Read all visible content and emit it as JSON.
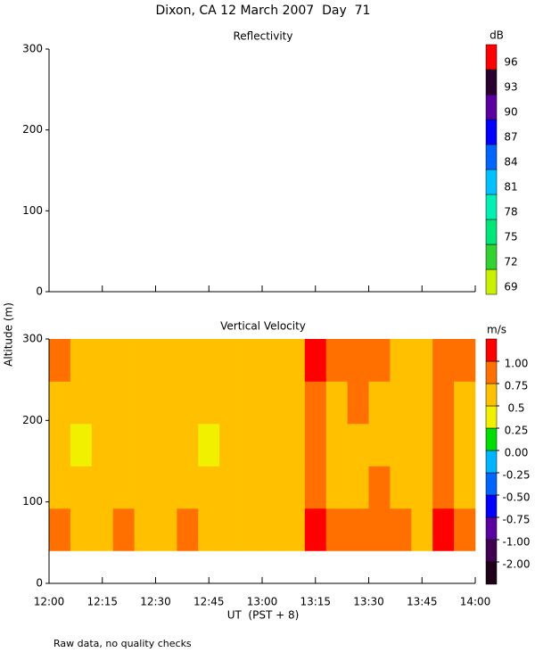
{
  "figure": {
    "title": "Dixon, CA 12 March 2007  Day  71",
    "ylabel": "Altitude (m)",
    "xlabel": "UT  (PST + 8)",
    "footnote": "Raw data, no quality checks"
  },
  "chart_data": [
    {
      "type": "heatmap",
      "title": "Reflectivity",
      "xlim": [
        12,
        14
      ],
      "xticks": [
        12,
        12.25,
        12.5,
        12.75,
        13,
        13.25,
        13.5,
        13.75,
        14
      ],
      "ylim": [
        0,
        300
      ],
      "yticks": [
        0,
        100,
        200,
        300
      ],
      "colorbar": {
        "label": "dB",
        "ticks": [
          69,
          72,
          75,
          78,
          81,
          84,
          87,
          90,
          93,
          96
        ],
        "colors": [
          "#c8f000",
          "#32d232",
          "#00e678",
          "#00f0b4",
          "#00c0ff",
          "#0064ff",
          "#0000ff",
          "#5a00a0",
          "#2a0030",
          "#ff0000",
          "#ff8c00",
          "#ffc000"
        ]
      }
    },
    {
      "type": "heatmap",
      "title": "Vertical Velocity",
      "xlim": [
        12,
        14
      ],
      "xticks": [
        {
          "value": 12,
          "label": "12:00"
        },
        {
          "value": 12.25,
          "label": "12:15"
        },
        {
          "value": 12.5,
          "label": "12:30"
        },
        {
          "value": 12.75,
          "label": "12:45"
        },
        {
          "value": 13,
          "label": "13:00"
        },
        {
          "value": 13.25,
          "label": "13:15"
        },
        {
          "value": 13.5,
          "label": "13:30"
        },
        {
          "value": 13.75,
          "label": "13:45"
        },
        {
          "value": 14,
          "label": "14:00"
        }
      ],
      "ylim": [
        0,
        300
      ],
      "yticks": [
        0,
        100,
        200,
        300
      ],
      "x": [
        12,
        12.1,
        12.2,
        12.3,
        12.4,
        12.5,
        12.6,
        12.7,
        12.8,
        12.9,
        13,
        13.1,
        13.2,
        13.3,
        13.4,
        13.5,
        13.6,
        13.7,
        13.8,
        13.9,
        14
      ],
      "y": [
        40,
        92,
        144,
        196,
        248,
        300
      ],
      "values": [
        [
          0.8,
          0.7,
          0.65,
          0.8,
          0.7,
          0.65,
          0.8,
          0.7,
          0.6,
          0.65,
          0.6,
          0.7,
          1.05,
          0.8,
          0.75,
          0.8,
          0.8,
          0.7,
          1.05,
          0.8
        ],
        [
          0.7,
          0.6,
          0.55,
          0.65,
          0.7,
          0.6,
          0.65,
          0.55,
          0.6,
          0.5,
          0.55,
          0.6,
          0.9,
          0.7,
          0.65,
          0.8,
          0.7,
          0.6,
          0.95,
          0.7
        ],
        [
          0.6,
          0.45,
          0.55,
          0.6,
          0.5,
          0.55,
          0.6,
          0.45,
          0.55,
          0.5,
          0.55,
          0.6,
          0.9,
          0.55,
          0.6,
          0.65,
          0.6,
          0.55,
          0.9,
          0.6
        ],
        [
          0.7,
          0.6,
          0.55,
          0.65,
          0.6,
          0.55,
          0.7,
          0.6,
          0.65,
          0.6,
          0.55,
          0.65,
          0.95,
          0.7,
          0.8,
          0.7,
          0.7,
          0.6,
          0.9,
          0.7
        ],
        [
          0.8,
          0.7,
          0.6,
          0.7,
          0.6,
          0.7,
          0.65,
          0.7,
          0.55,
          0.6,
          0.55,
          0.7,
          1.1,
          0.8,
          0.8,
          0.75,
          0.7,
          0.65,
          0.95,
          0.8
        ]
      ],
      "colorbar": {
        "label": "m/s",
        "bounds": [
          {
            "value": -2,
            "label": "-2.00"
          },
          {
            "value": -1,
            "label": "-1.00"
          },
          {
            "value": -0.75,
            "label": "-0.75"
          },
          {
            "value": -0.5,
            "label": "-0.50"
          },
          {
            "value": -0.25,
            "label": "-0.25"
          },
          {
            "value": 0,
            "label": "0.00"
          },
          0.25,
          0.5,
          0.75,
          {
            "value": 1,
            "label": "1.00"
          }
        ],
        "colors": [
          "#200018",
          "#400050",
          "#5a00a0",
          "#0000ff",
          "#0064ff",
          "#00b4ff",
          "#00dd00",
          "#f0f000",
          "#ffc000",
          "#ff7000",
          "#ff0000"
        ]
      }
    }
  ]
}
